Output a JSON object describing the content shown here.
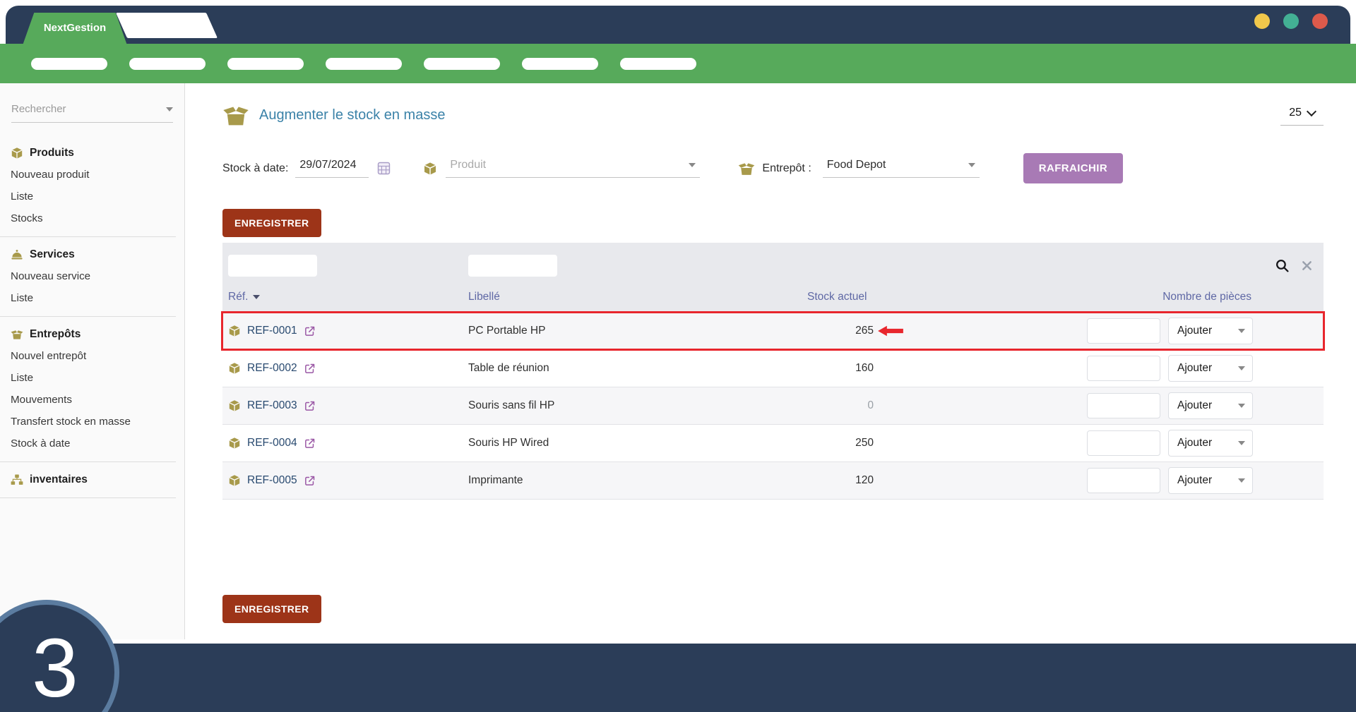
{
  "window": {
    "brand": "NextGestion"
  },
  "nav": {
    "pill_count": 7
  },
  "sidebar": {
    "search_placeholder": "Rechercher",
    "sections": [
      {
        "title": "Produits",
        "icon": "box",
        "items": [
          "Nouveau produit",
          "Liste",
          "Stocks"
        ]
      },
      {
        "title": "Services",
        "icon": "cloche",
        "items": [
          "Nouveau service",
          "Liste"
        ]
      },
      {
        "title": "Entrepôts",
        "icon": "openbox",
        "items": [
          "Nouvel entrepôt",
          "Liste",
          "Mouvements",
          "Transfert stock en masse",
          "Stock à date"
        ]
      },
      {
        "title": "inventaires",
        "icon": "sitemap",
        "items": []
      }
    ]
  },
  "header": {
    "title": "Augmenter le stock en masse",
    "page_size": "25"
  },
  "filters": {
    "date_label": "Stock à date:",
    "date_value": "29/07/2024",
    "product_placeholder": "Produit",
    "warehouse_label": "Entrepôt :",
    "warehouse_value": "Food Depot",
    "refresh_button": "RAFRAICHIR"
  },
  "table": {
    "save_button": "ENREGISTRER",
    "columns": [
      "Réf.",
      "Libellé",
      "Stock actuel",
      "Nombre de pièces"
    ],
    "action_label": "Ajouter",
    "rows": [
      {
        "ref": "REF-0001",
        "label": "PC Portable HP",
        "stock": "265",
        "highlighted": true
      },
      {
        "ref": "REF-0002",
        "label": "Table de réunion",
        "stock": "160",
        "highlighted": false
      },
      {
        "ref": "REF-0003",
        "label": "Souris sans fil HP",
        "stock": "0",
        "highlighted": false
      },
      {
        "ref": "REF-0004",
        "label": "Souris HP Wired",
        "stock": "250",
        "highlighted": false
      },
      {
        "ref": "REF-0005",
        "label": "Imprimante",
        "stock": "120",
        "highlighted": false
      }
    ]
  },
  "footer": {
    "step_number": "3"
  },
  "colors": {
    "navy": "#2b3d58",
    "green": "#57aa5b",
    "gold": "#a89a4b",
    "title_teal": "#3b82a8",
    "header_blue": "#5f68a5",
    "button_red": "#9d3418",
    "button_purple": "#a87ab5",
    "annotation_red": "#e8262d",
    "traffic_yellow": "#f1c84b",
    "traffic_teal": "#43b094",
    "traffic_red": "#dd5a4b"
  }
}
